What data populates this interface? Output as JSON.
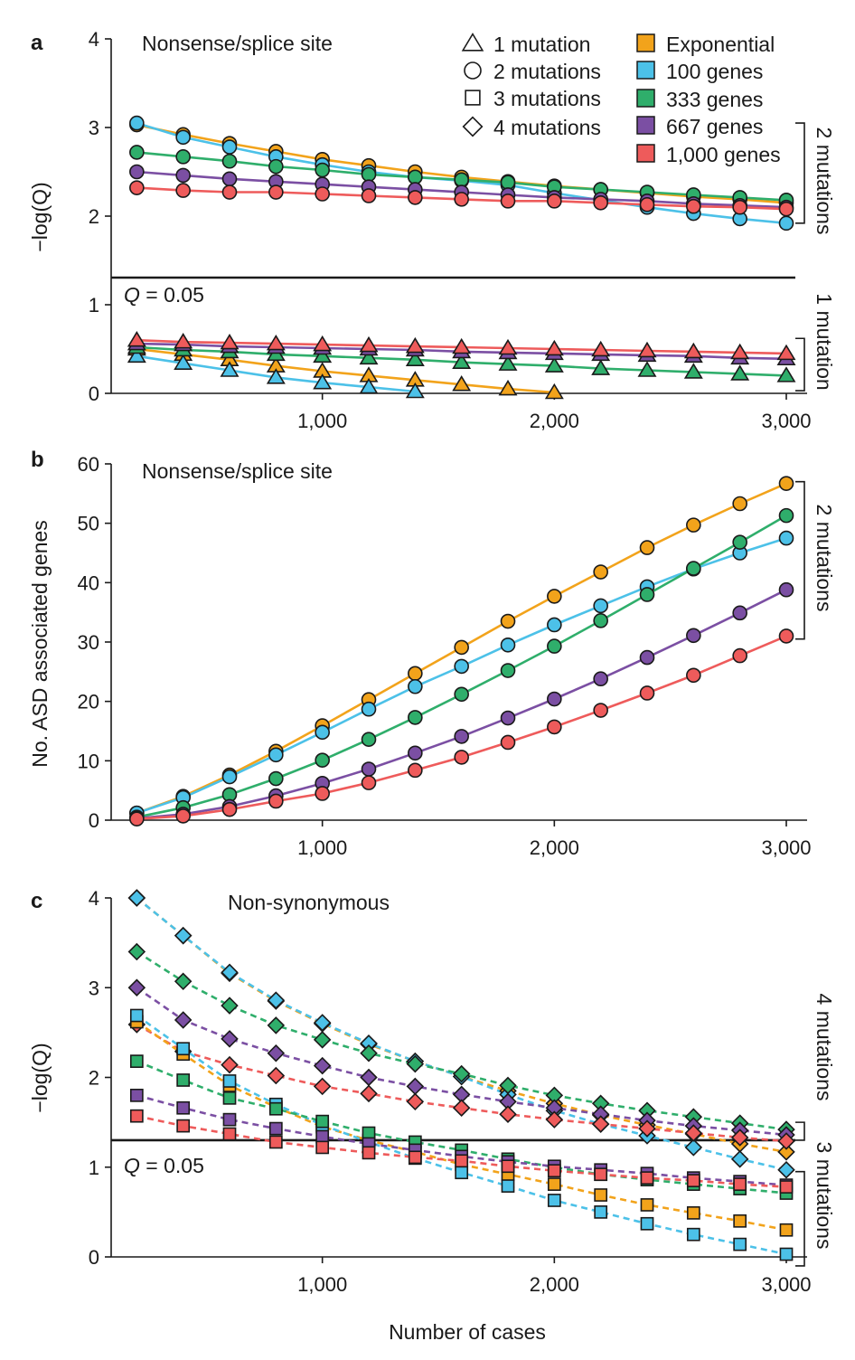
{
  "figure": {
    "xlabel": "Number of cases",
    "colors": {
      "Exponential": "#f2a31b",
      "100 genes": "#4cc1e8",
      "333 genes": "#2fae6b",
      "667 genes": "#7b4fa3",
      "1,000 genes": "#ee5b5b"
    }
  },
  "legend": {
    "shapes": [
      {
        "marker": "triangle",
        "label": "1 mutation"
      },
      {
        "marker": "circle",
        "label": "2 mutations"
      },
      {
        "marker": "square",
        "label": "3 mutations"
      },
      {
        "marker": "diamond",
        "label": "4 mutations"
      }
    ],
    "models": [
      {
        "key": "Exponential",
        "label": "Exponential"
      },
      {
        "key": "100 genes",
        "label": "100 genes"
      },
      {
        "key": "333 genes",
        "label": "333 genes"
      },
      {
        "key": "667 genes",
        "label": "667 genes"
      },
      {
        "key": "1,000 genes",
        "label": "1,000 genes"
      }
    ]
  },
  "chart_data": [
    {
      "panel": "a",
      "type": "line",
      "title": "Nonsense/splice site",
      "ylabel": "−log(Q)",
      "xlim": [
        0,
        3000
      ],
      "x_ticks": [
        1000,
        2000,
        3000
      ],
      "x_tick_labels": [
        "1,000",
        "2,000",
        "3,000"
      ],
      "y_ticks": [
        0,
        1,
        2,
        3,
        4
      ],
      "y_tick_labels": [
        "0",
        "1",
        "2",
        "3",
        "4"
      ],
      "threshold": {
        "value": 1.3,
        "label_prefix": "Q",
        "label_suffix": " = 0.05"
      },
      "brackets": [
        {
          "label": "2 mutations",
          "range": [
            1.92,
            3.05
          ]
        },
        {
          "label": "1 mutation",
          "range": [
            0.03,
            0.62
          ]
        }
      ],
      "x": [
        200,
        400,
        600,
        800,
        1000,
        1200,
        1400,
        1600,
        1800,
        2000,
        2200,
        2400,
        2600,
        2800,
        3000
      ],
      "series": [
        {
          "name": "Exponential",
          "marker": "circle",
          "values": [
            3.03,
            2.92,
            2.82,
            2.73,
            2.64,
            2.57,
            2.5,
            2.44,
            2.39,
            2.34,
            2.3,
            2.26,
            2.22,
            2.19,
            2.15
          ]
        },
        {
          "name": "100 genes",
          "marker": "circle",
          "values": [
            3.05,
            2.89,
            2.78,
            2.67,
            2.58,
            2.5,
            2.44,
            2.4,
            2.35,
            2.26,
            2.18,
            2.1,
            2.03,
            1.97,
            1.92
          ]
        },
        {
          "name": "333 genes",
          "marker": "circle",
          "values": [
            2.72,
            2.67,
            2.62,
            2.56,
            2.52,
            2.47,
            2.44,
            2.41,
            2.38,
            2.33,
            2.3,
            2.27,
            2.24,
            2.21,
            2.18
          ]
        },
        {
          "name": "667 genes",
          "marker": "circle",
          "values": [
            2.5,
            2.46,
            2.42,
            2.39,
            2.36,
            2.33,
            2.3,
            2.27,
            2.24,
            2.21,
            2.19,
            2.17,
            2.14,
            2.12,
            2.1
          ]
        },
        {
          "name": "1,000 genes",
          "marker": "circle",
          "values": [
            2.32,
            2.29,
            2.27,
            2.27,
            2.25,
            2.23,
            2.21,
            2.19,
            2.17,
            2.17,
            2.15,
            2.13,
            2.11,
            2.1,
            2.08
          ]
        },
        {
          "name": "Exponential",
          "marker": "triangle",
          "values": [
            0.5,
            0.44,
            0.38,
            0.31,
            0.25,
            0.2,
            0.15,
            0.1,
            0.05,
            0.01,
            null,
            null,
            null,
            null,
            null
          ]
        },
        {
          "name": "100 genes",
          "marker": "triangle",
          "values": [
            0.42,
            0.34,
            0.26,
            0.18,
            0.12,
            0.07,
            0.02,
            null,
            null,
            null,
            null,
            null,
            null,
            null,
            null
          ]
        },
        {
          "name": "333 genes",
          "marker": "triangle",
          "values": [
            0.52,
            0.49,
            0.47,
            0.44,
            0.42,
            0.4,
            0.38,
            0.35,
            0.33,
            0.31,
            0.28,
            0.26,
            0.24,
            0.22,
            0.2
          ]
        },
        {
          "name": "667 genes",
          "marker": "triangle",
          "values": [
            0.56,
            0.55,
            0.53,
            0.52,
            0.51,
            0.5,
            0.49,
            0.47,
            0.46,
            0.45,
            0.44,
            0.43,
            0.42,
            0.4,
            0.39
          ]
        },
        {
          "name": "1,000 genes",
          "marker": "triangle",
          "values": [
            0.6,
            0.58,
            0.57,
            0.56,
            0.55,
            0.54,
            0.53,
            0.52,
            0.51,
            0.5,
            0.49,
            0.48,
            0.47,
            0.46,
            0.45
          ]
        }
      ]
    },
    {
      "panel": "b",
      "type": "line",
      "title": "Nonsense/splice site",
      "ylabel": "No. ASD associated genes",
      "xlim": [
        0,
        3000
      ],
      "ylim": [
        0,
        60
      ],
      "x_ticks": [
        1000,
        2000,
        3000
      ],
      "x_tick_labels": [
        "1,000",
        "2,000",
        "3,000"
      ],
      "y_ticks": [
        0,
        10,
        20,
        30,
        40,
        50,
        60
      ],
      "y_tick_labels": [
        "0",
        "10",
        "20",
        "30",
        "40",
        "50",
        "60"
      ],
      "brackets": [
        {
          "label": "2 mutations",
          "range": [
            30.5,
            57
          ]
        }
      ],
      "x": [
        200,
        400,
        600,
        800,
        1000,
        1200,
        1400,
        1600,
        1800,
        2000,
        2200,
        2400,
        2600,
        2800,
        3000
      ],
      "series": [
        {
          "name": "Exponential",
          "marker": "circle",
          "values": [
            1.2,
            4.0,
            7.6,
            11.6,
            15.9,
            20.3,
            24.7,
            29.1,
            33.5,
            37.7,
            41.8,
            45.9,
            49.7,
            53.3,
            56.7
          ]
        },
        {
          "name": "100 genes",
          "marker": "circle",
          "values": [
            1.2,
            3.8,
            7.3,
            11.0,
            14.8,
            18.7,
            22.5,
            25.9,
            29.5,
            32.9,
            36.1,
            39.3,
            42.3,
            45.0,
            47.5
          ]
        },
        {
          "name": "333 genes",
          "marker": "circle",
          "values": [
            0.5,
            2.1,
            4.3,
            7.0,
            10.1,
            13.6,
            17.3,
            21.2,
            25.2,
            29.3,
            33.6,
            38.0,
            42.4,
            46.8,
            51.3
          ]
        },
        {
          "name": "667 genes",
          "marker": "circle",
          "values": [
            0.3,
            1.0,
            2.3,
            4.1,
            6.2,
            8.6,
            11.3,
            14.1,
            17.2,
            20.4,
            23.8,
            27.4,
            31.1,
            34.9,
            38.8
          ]
        },
        {
          "name": "1,000 genes",
          "marker": "circle",
          "values": [
            0.2,
            0.7,
            1.8,
            3.2,
            4.5,
            6.3,
            8.4,
            10.6,
            13.1,
            15.7,
            18.5,
            21.4,
            24.4,
            27.7,
            31.0
          ]
        }
      ]
    },
    {
      "panel": "c",
      "type": "line",
      "title": "Non-synonymous",
      "ylabel": "−log(Q)",
      "xlim": [
        0,
        3000
      ],
      "ylim": [
        0,
        4
      ],
      "x_ticks": [
        1000,
        2000,
        3000
      ],
      "x_tick_labels": [
        "1,000",
        "2,000",
        "3,000"
      ],
      "y_ticks": [
        0,
        1,
        2,
        3,
        4
      ],
      "y_tick_labels": [
        "0",
        "1",
        "2",
        "3",
        "4"
      ],
      "threshold": {
        "value": 1.3,
        "label_prefix": "Q",
        "label_suffix": " = 0.05"
      },
      "brackets": [
        {
          "label": "4 mutations",
          "range": [
            1.3,
            1.5
          ]
        },
        {
          "label": "3 mutations",
          "range": [
            -0.1,
            0.95
          ]
        }
      ],
      "x": [
        200,
        400,
        600,
        800,
        1000,
        1200,
        1400,
        1600,
        1800,
        2000,
        2200,
        2400,
        2600,
        2800,
        3000
      ],
      "series": [
        {
          "name": "Exponential",
          "marker": "diamond",
          "values": [
            4.0,
            3.58,
            3.16,
            2.85,
            2.6,
            2.37,
            2.18,
            2.01,
            1.85,
            1.71,
            1.58,
            1.47,
            1.37,
            1.26,
            1.17
          ]
        },
        {
          "name": "100 genes",
          "marker": "diamond",
          "values": [
            4.0,
            3.58,
            3.17,
            2.86,
            2.61,
            2.38,
            2.18,
            2.01,
            1.81,
            1.63,
            1.48,
            1.35,
            1.22,
            1.09,
            0.97
          ]
        },
        {
          "name": "333 genes",
          "marker": "diamond",
          "values": [
            3.4,
            3.07,
            2.8,
            2.58,
            2.42,
            2.27,
            2.15,
            2.04,
            1.91,
            1.8,
            1.71,
            1.63,
            1.56,
            1.49,
            1.42
          ]
        },
        {
          "name": "667 genes",
          "marker": "diamond",
          "values": [
            3.0,
            2.64,
            2.43,
            2.27,
            2.13,
            2.0,
            1.9,
            1.81,
            1.73,
            1.66,
            1.59,
            1.52,
            1.46,
            1.41,
            1.36
          ]
        },
        {
          "name": "1,000 genes",
          "marker": "diamond",
          "values": [
            2.59,
            2.29,
            2.14,
            2.02,
            1.9,
            1.82,
            1.73,
            1.66,
            1.59,
            1.53,
            1.48,
            1.43,
            1.38,
            1.33,
            1.29
          ]
        },
        {
          "name": "Exponential",
          "marker": "square",
          "values": [
            2.62,
            2.26,
            1.91,
            1.67,
            1.45,
            1.3,
            1.17,
            1.03,
            0.92,
            0.81,
            0.69,
            0.58,
            0.49,
            0.4,
            0.3
          ]
        },
        {
          "name": "100 genes",
          "marker": "square",
          "values": [
            2.69,
            2.32,
            1.96,
            1.7,
            1.47,
            1.28,
            1.1,
            0.94,
            0.79,
            0.63,
            0.5,
            0.37,
            0.25,
            0.14,
            0.03
          ]
        },
        {
          "name": "333 genes",
          "marker": "square",
          "values": [
            2.18,
            1.97,
            1.77,
            1.65,
            1.51,
            1.38,
            1.28,
            1.19,
            1.09,
            1.0,
            0.92,
            0.86,
            0.81,
            0.76,
            0.71
          ]
        },
        {
          "name": "667 genes",
          "marker": "square",
          "values": [
            1.8,
            1.66,
            1.53,
            1.43,
            1.34,
            1.26,
            1.19,
            1.12,
            1.06,
            1.01,
            0.97,
            0.93,
            0.88,
            0.84,
            0.8
          ]
        },
        {
          "name": "1,000 genes",
          "marker": "square",
          "values": [
            1.57,
            1.46,
            1.37,
            1.28,
            1.22,
            1.16,
            1.11,
            1.07,
            1.01,
            0.96,
            0.92,
            0.88,
            0.85,
            0.81,
            0.78
          ]
        }
      ]
    }
  ]
}
